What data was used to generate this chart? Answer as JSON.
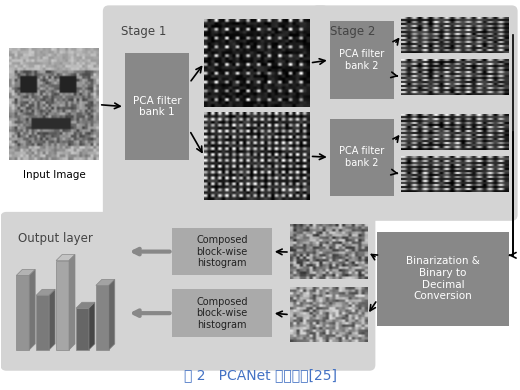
{
  "title": "图 2   PCANet 原理简图[25]",
  "title_color": "#4472C4",
  "bg_color": "#ffffff",
  "stage1_label": "Stage 1",
  "stage2_label": "Stage 2",
  "output_label": "Output layer",
  "pca_bank1_text": "PCA filter\nbank 1",
  "pca_bank2_text": "PCA filter\nbank 2",
  "binarization_text": "Binarization &\nBinary to\nDecimal\nConversion",
  "composed_hist_text": "Composed\nblock-wise\nhistogram",
  "input_label": "Input Image",
  "figsize": [
    5.2,
    3.9
  ],
  "dpi": 100
}
